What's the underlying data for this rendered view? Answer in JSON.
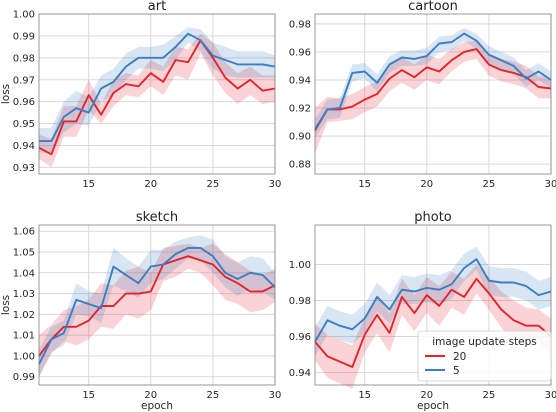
{
  "figure": {
    "legend_title": "image update steps",
    "xlabel": "epoch",
    "ylabel": "loss"
  },
  "chart_data": [
    {
      "type": "line",
      "title": "art",
      "xlabel": "",
      "ylabel": "loss",
      "xlim": [
        11,
        30
      ],
      "ylim": [
        0.927,
        1.0
      ],
      "xticks": [
        15,
        20,
        25,
        30
      ],
      "yticks": [
        0.93,
        0.94,
        0.95,
        0.96,
        0.97,
        0.98,
        0.99,
        1.0
      ],
      "ytick_labels": [
        "0.93",
        "0.94",
        "0.95",
        "0.96",
        "0.97",
        "0.98",
        "0.99",
        "1.00"
      ],
      "x": [
        11,
        12,
        13,
        14,
        15,
        16,
        17,
        18,
        19,
        20,
        21,
        22,
        23,
        24,
        25,
        26,
        27,
        28,
        29,
        30
      ],
      "series": [
        {
          "name": "20",
          "color": "#e3242b",
          "values": [
            0.939,
            0.936,
            0.951,
            0.951,
            0.963,
            0.954,
            0.964,
            0.968,
            0.967,
            0.973,
            0.969,
            0.979,
            0.978,
            0.988,
            0.98,
            0.971,
            0.966,
            0.97,
            0.965,
            0.966
          ],
          "lower": [
            0.934,
            0.93,
            0.944,
            0.944,
            0.956,
            0.95,
            0.958,
            0.963,
            0.962,
            0.967,
            0.963,
            0.972,
            0.97,
            0.982,
            0.972,
            0.964,
            0.959,
            0.963,
            0.959,
            0.96
          ],
          "upper": [
            0.945,
            0.943,
            0.958,
            0.958,
            0.97,
            0.959,
            0.97,
            0.973,
            0.972,
            0.979,
            0.976,
            0.985,
            0.984,
            0.991,
            0.987,
            0.978,
            0.973,
            0.976,
            0.972,
            0.972
          ]
        },
        {
          "name": "5",
          "color": "#3b7ec1",
          "values": [
            0.942,
            0.942,
            0.953,
            0.957,
            0.955,
            0.966,
            0.969,
            0.976,
            0.98,
            0.98,
            0.98,
            0.985,
            0.991,
            0.988,
            0.981,
            0.979,
            0.977,
            0.977,
            0.977,
            0.976
          ],
          "lower": [
            0.937,
            0.936,
            0.946,
            0.95,
            0.949,
            0.96,
            0.963,
            0.97,
            0.975,
            0.975,
            0.974,
            0.979,
            0.987,
            0.983,
            0.975,
            0.972,
            0.971,
            0.971,
            0.971,
            0.971
          ],
          "upper": [
            0.948,
            0.948,
            0.96,
            0.965,
            0.962,
            0.972,
            0.975,
            0.982,
            0.985,
            0.985,
            0.986,
            0.99,
            0.994,
            0.993,
            0.987,
            0.985,
            0.983,
            0.983,
            0.983,
            0.981
          ]
        }
      ]
    },
    {
      "type": "line",
      "title": "cartoon",
      "xlabel": "",
      "ylabel": "",
      "xlim": [
        11,
        30
      ],
      "ylim": [
        0.873,
        0.987
      ],
      "xticks": [
        15,
        20,
        25,
        30
      ],
      "yticks": [
        0.88,
        0.9,
        0.92,
        0.94,
        0.96,
        0.98
      ],
      "ytick_labels": [
        "0.88",
        "0.90",
        "0.92",
        "0.94",
        "0.96",
        "0.98"
      ],
      "x": [
        11,
        12,
        13,
        14,
        15,
        16,
        17,
        18,
        19,
        20,
        21,
        22,
        23,
        24,
        25,
        26,
        27,
        28,
        29,
        30
      ],
      "series": [
        {
          "name": "20",
          "color": "#e3242b",
          "values": [
            0.904,
            0.919,
            0.919,
            0.921,
            0.926,
            0.93,
            0.941,
            0.947,
            0.942,
            0.949,
            0.946,
            0.954,
            0.96,
            0.962,
            0.951,
            0.947,
            0.945,
            0.942,
            0.935,
            0.934
          ],
          "lower": [
            0.888,
            0.91,
            0.911,
            0.912,
            0.917,
            0.921,
            0.932,
            0.938,
            0.933,
            0.94,
            0.937,
            0.946,
            0.953,
            0.955,
            0.943,
            0.939,
            0.937,
            0.934,
            0.927,
            0.927
          ],
          "upper": [
            0.92,
            0.928,
            0.927,
            0.93,
            0.935,
            0.939,
            0.95,
            0.956,
            0.951,
            0.958,
            0.955,
            0.962,
            0.967,
            0.968,
            0.959,
            0.955,
            0.953,
            0.95,
            0.943,
            0.941
          ]
        },
        {
          "name": "5",
          "color": "#3b7ec1",
          "values": [
            0.905,
            0.919,
            0.92,
            0.945,
            0.946,
            0.938,
            0.951,
            0.956,
            0.955,
            0.957,
            0.966,
            0.967,
            0.973,
            0.968,
            0.958,
            0.954,
            0.95,
            0.941,
            0.946,
            0.94
          ],
          "lower": [
            0.899,
            0.912,
            0.913,
            0.939,
            0.941,
            0.932,
            0.945,
            0.95,
            0.95,
            0.951,
            0.96,
            0.961,
            0.968,
            0.962,
            0.952,
            0.948,
            0.944,
            0.935,
            0.94,
            0.934
          ],
          "upper": [
            0.912,
            0.926,
            0.927,
            0.951,
            0.952,
            0.944,
            0.957,
            0.961,
            0.961,
            0.963,
            0.971,
            0.972,
            0.977,
            0.973,
            0.964,
            0.96,
            0.956,
            0.947,
            0.952,
            0.946
          ]
        }
      ]
    },
    {
      "type": "line",
      "title": "sketch",
      "xlabel": "epoch",
      "ylabel": "loss",
      "xlim": [
        11,
        30
      ],
      "ylim": [
        0.986,
        1.063
      ],
      "xticks": [
        15,
        20,
        25,
        30
      ],
      "yticks": [
        0.99,
        1.0,
        1.01,
        1.02,
        1.03,
        1.04,
        1.05,
        1.06
      ],
      "ytick_labels": [
        "0.99",
        "1.00",
        "1.01",
        "1.02",
        "1.03",
        "1.04",
        "1.05",
        "1.06"
      ],
      "x": [
        11,
        12,
        13,
        14,
        15,
        16,
        17,
        18,
        19,
        20,
        21,
        22,
        23,
        24,
        25,
        26,
        27,
        28,
        29,
        30
      ],
      "series": [
        {
          "name": "20",
          "color": "#e3242b",
          "values": [
            1.0,
            1.008,
            1.014,
            1.014,
            1.017,
            1.024,
            1.024,
            1.03,
            1.03,
            1.031,
            1.044,
            1.046,
            1.048,
            1.046,
            1.044,
            1.038,
            1.035,
            1.031,
            1.031,
            1.034
          ],
          "lower": [
            0.99,
            1.001,
            1.007,
            1.005,
            1.008,
            1.014,
            1.013,
            1.02,
            1.018,
            1.022,
            1.036,
            1.038,
            1.042,
            1.04,
            1.034,
            1.027,
            1.025,
            1.021,
            1.022,
            1.026
          ],
          "upper": [
            1.01,
            1.015,
            1.022,
            1.024,
            1.027,
            1.035,
            1.034,
            1.041,
            1.043,
            1.04,
            1.052,
            1.053,
            1.054,
            1.052,
            1.054,
            1.049,
            1.045,
            1.041,
            1.039,
            1.042
          ]
        },
        {
          "name": "5",
          "color": "#3b7ec1",
          "values": [
            0.996,
            1.008,
            1.011,
            1.027,
            1.025,
            1.023,
            1.043,
            1.039,
            1.035,
            1.043,
            1.044,
            1.049,
            1.052,
            1.052,
            1.048,
            1.04,
            1.037,
            1.04,
            1.039,
            1.033
          ],
          "lower": [
            0.99,
            1.002,
            1.005,
            1.02,
            1.019,
            1.016,
            1.034,
            1.031,
            1.028,
            1.035,
            1.037,
            1.042,
            1.047,
            1.046,
            1.04,
            1.033,
            1.029,
            1.032,
            1.031,
            1.027
          ],
          "upper": [
            1.003,
            1.014,
            1.017,
            1.035,
            1.031,
            1.03,
            1.052,
            1.047,
            1.043,
            1.051,
            1.051,
            1.055,
            1.057,
            1.058,
            1.056,
            1.048,
            1.045,
            1.048,
            1.047,
            1.04
          ]
        }
      ]
    },
    {
      "type": "line",
      "title": "photo",
      "xlabel": "epoch",
      "ylabel": "",
      "xlim": [
        11,
        30
      ],
      "ylim": [
        0.933,
        1.022
      ],
      "xticks": [
        15,
        20,
        25,
        30
      ],
      "yticks": [
        0.94,
        0.96,
        0.98,
        1.0
      ],
      "ytick_labels": [
        "0.94",
        "0.96",
        "0.98",
        "1.00"
      ],
      "legend": {
        "title": "image update steps",
        "placement": "lower-right",
        "entries": [
          "20",
          "5"
        ]
      },
      "x": [
        11,
        12,
        13,
        14,
        15,
        16,
        17,
        18,
        19,
        20,
        21,
        22,
        23,
        24,
        25,
        26,
        27,
        28,
        29,
        30
      ],
      "series": [
        {
          "name": "20",
          "color": "#e3242b",
          "values": [
            0.957,
            0.949,
            0.946,
            0.943,
            0.961,
            0.972,
            0.962,
            0.982,
            0.973,
            0.983,
            0.977,
            0.986,
            0.982,
            0.992,
            0.984,
            0.975,
            0.969,
            0.966,
            0.966,
            0.96
          ],
          "lower": [
            0.947,
            0.937,
            0.934,
            0.931,
            0.951,
            0.962,
            0.951,
            0.972,
            0.963,
            0.973,
            0.966,
            0.976,
            0.972,
            0.984,
            0.975,
            0.965,
            0.958,
            0.956,
            0.957,
            0.95
          ],
          "upper": [
            0.967,
            0.961,
            0.958,
            0.955,
            0.971,
            0.982,
            0.973,
            0.992,
            0.983,
            0.993,
            0.988,
            0.996,
            0.992,
            1.0,
            0.993,
            0.985,
            0.98,
            0.976,
            0.975,
            0.97
          ]
        },
        {
          "name": "5",
          "color": "#3b7ec1",
          "values": [
            0.957,
            0.969,
            0.966,
            0.964,
            0.97,
            0.982,
            0.975,
            0.986,
            0.985,
            0.987,
            0.986,
            0.989,
            0.998,
            1.003,
            0.991,
            0.99,
            0.99,
            0.988,
            0.983,
            0.985
          ],
          "lower": [
            0.949,
            0.961,
            0.958,
            0.956,
            0.962,
            0.974,
            0.967,
            0.978,
            0.978,
            0.979,
            0.978,
            0.981,
            0.991,
            0.997,
            0.983,
            0.982,
            0.982,
            0.98,
            0.975,
            0.977
          ],
          "upper": [
            0.965,
            0.977,
            0.974,
            0.972,
            0.978,
            0.99,
            0.983,
            0.994,
            0.993,
            0.995,
            0.994,
            0.997,
            1.006,
            1.01,
            0.999,
            0.998,
            0.998,
            0.996,
            0.991,
            0.993
          ]
        }
      ]
    }
  ]
}
